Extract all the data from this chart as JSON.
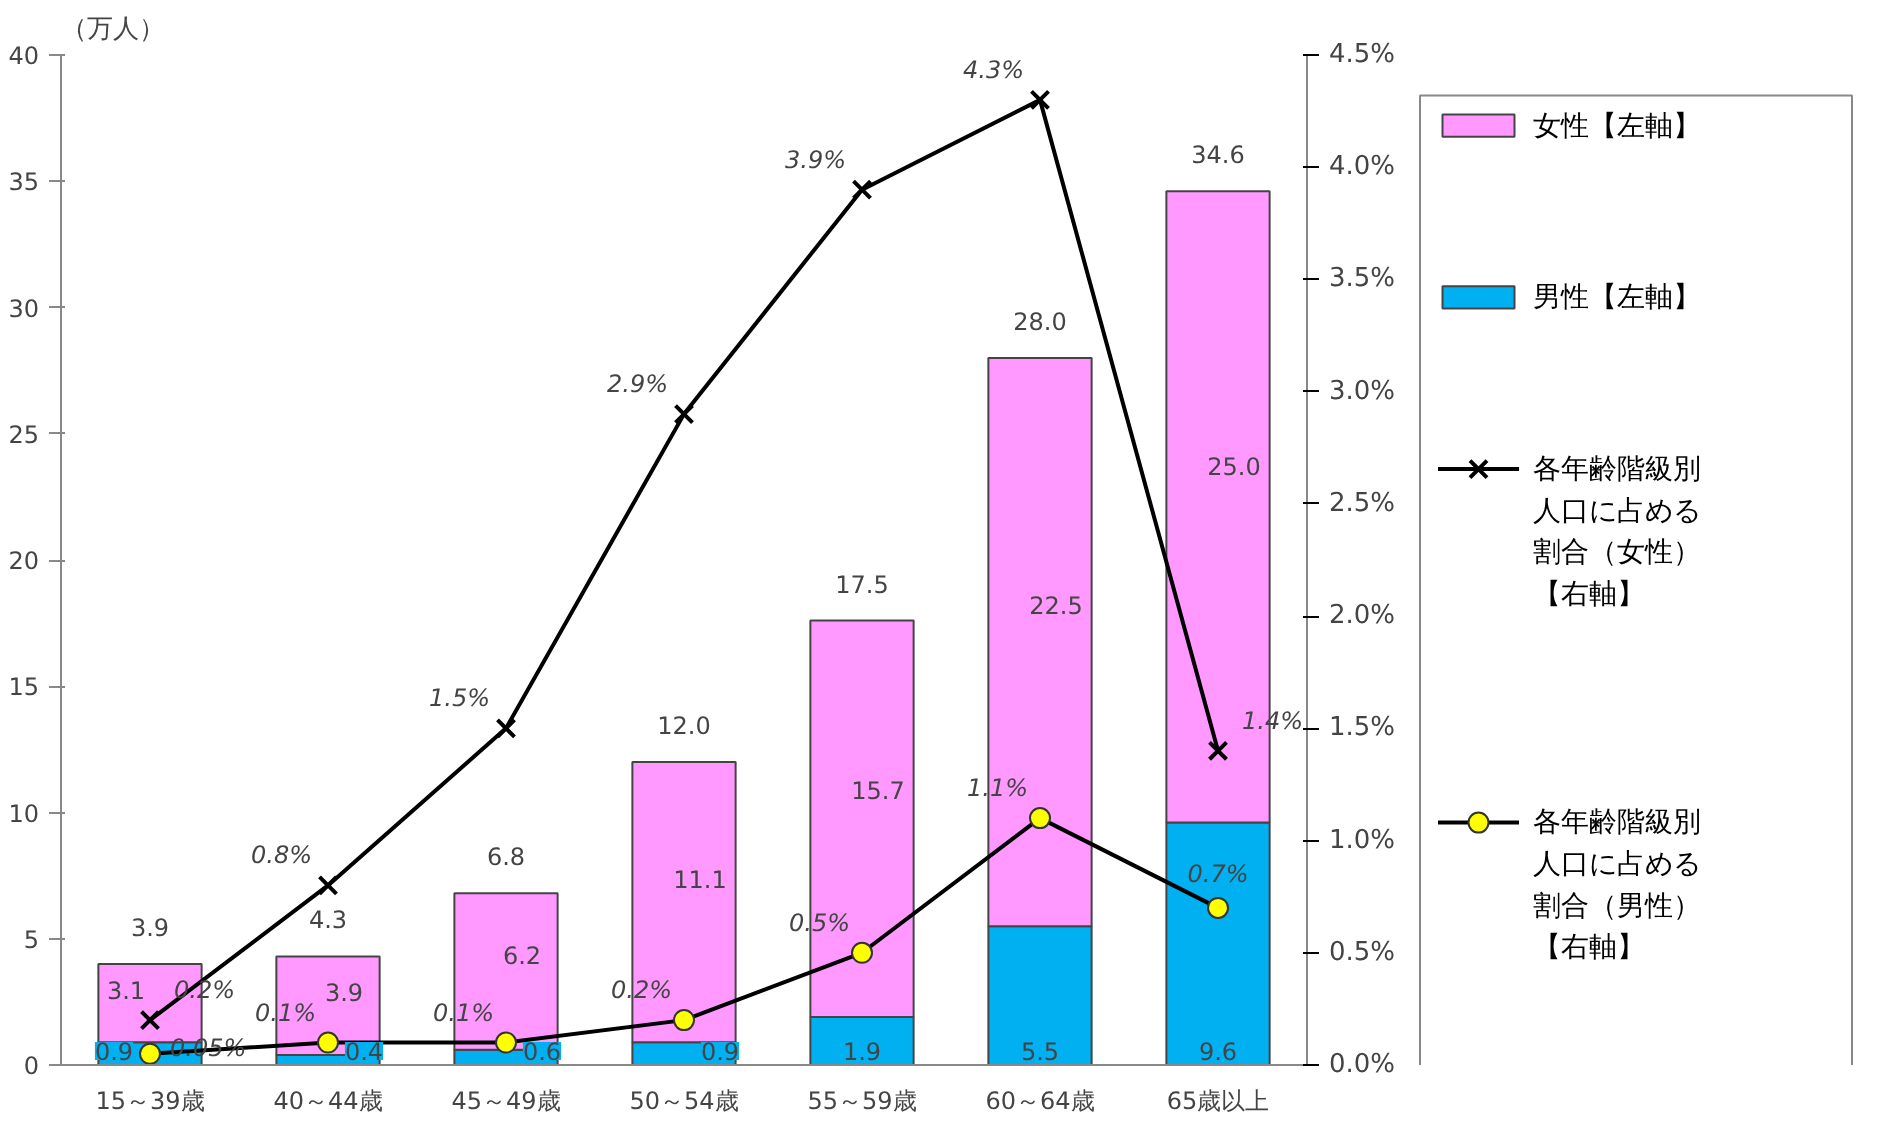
{
  "chart_data": {
    "type": "bar",
    "stacked": true,
    "ylabel": "（万人）",
    "categories": [
      "15～39歳",
      "40～44歳",
      "45～49歳",
      "50～54歳",
      "55～59歳",
      "60～64歳",
      "65歳以上"
    ],
    "series": [
      {
        "name": "男性【左軸】",
        "color": "#00b0f0",
        "values": [
          0.9,
          0.4,
          0.6,
          0.9,
          1.9,
          5.5,
          9.6
        ],
        "value_labels": [
          "0.9",
          "0.4",
          "0.6",
          "0.9",
          "1.9",
          "5.5",
          "9.6"
        ]
      },
      {
        "name": "女性【左軸】",
        "color": "#ff99ff",
        "values": [
          3.1,
          3.9,
          6.2,
          11.1,
          15.7,
          22.5,
          25.0
        ],
        "value_labels": [
          "3.1",
          "3.9",
          "6.2",
          "11.1",
          "15.7",
          "22.5",
          "25.0"
        ]
      },
      {
        "name": "各年齢階級別人口に占める割合（女性）【右軸】",
        "type": "line",
        "axis": "y2",
        "marker": "cross",
        "color": "#000000",
        "values": [
          0.2,
          0.8,
          1.5,
          2.9,
          3.9,
          4.3,
          1.4
        ],
        "value_labels": [
          "0.2%",
          "0.8%",
          "1.5%",
          "2.9%",
          "3.9%",
          "4.3%",
          "1.4%"
        ]
      },
      {
        "name": "各年齢階級別人口に占める割合（男性）【右軸】",
        "type": "line",
        "axis": "y2",
        "marker": "circle",
        "color": "#000000",
        "values": [
          0.05,
          0.1,
          0.1,
          0.2,
          0.5,
          1.1,
          0.7
        ],
        "value_labels": [
          "0.05%",
          "0.1%",
          "0.1%",
          "0.2%",
          "0.5%",
          "1.1%",
          "0.7%"
        ]
      }
    ],
    "totals": [
      "3.9",
      "4.3",
      "6.8",
      "12.0",
      "17.5",
      "28.0",
      "34.6"
    ],
    "ylim": [
      0,
      40
    ],
    "yticks": [
      0,
      5,
      10,
      15,
      20,
      25,
      30,
      35,
      40
    ],
    "y2lim": [
      0,
      4.5
    ],
    "y2ticks": [
      {
        "value": 0,
        "label": "0.0%"
      },
      {
        "value": 0.5,
        "label": "0.5%"
      },
      {
        "value": 1,
        "label": "1.0%"
      },
      {
        "value": 1.5,
        "label": "1.5%"
      },
      {
        "value": 2,
        "label": "2.0%"
      },
      {
        "value": 2.5,
        "label": "2.5%"
      },
      {
        "value": 3,
        "label": "3.0%"
      },
      {
        "value": 3.5,
        "label": "3.5%"
      },
      {
        "value": 4,
        "label": "4.0%"
      },
      {
        "value": 4.5,
        "label": "4.5%"
      }
    ],
    "grid": false,
    "legend": "right"
  }
}
